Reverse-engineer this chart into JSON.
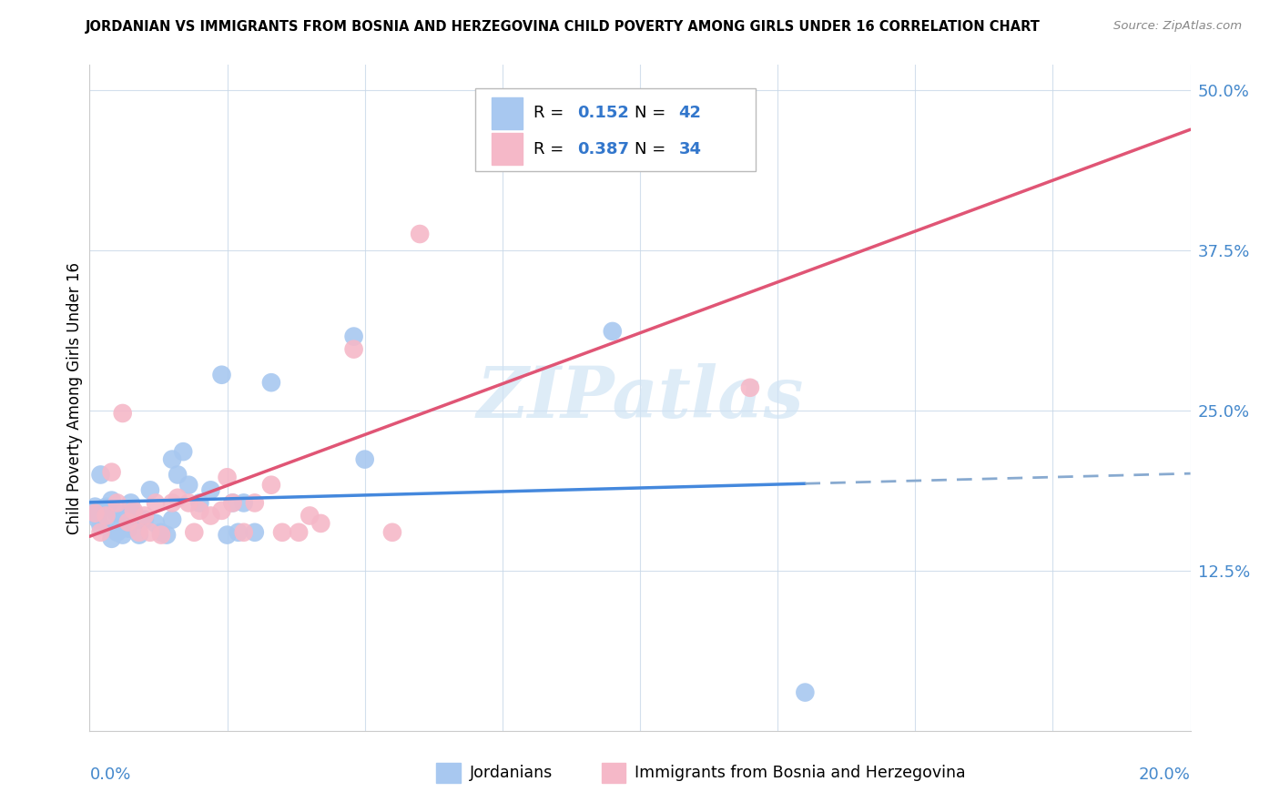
{
  "title": "JORDANIAN VS IMMIGRANTS FROM BOSNIA AND HERZEGOVINA CHILD POVERTY AMONG GIRLS UNDER 16 CORRELATION CHART",
  "source": "Source: ZipAtlas.com",
  "ylabel": "Child Poverty Among Girls Under 16",
  "xlim": [
    0.0,
    0.2
  ],
  "ylim": [
    0.0,
    0.52
  ],
  "ytick_vals": [
    0.0,
    0.125,
    0.25,
    0.375,
    0.5
  ],
  "ytick_labels": [
    "",
    "12.5%",
    "25.0%",
    "37.5%",
    "50.0%"
  ],
  "xtick_vals": [
    0.0,
    0.025,
    0.05,
    0.075,
    0.1,
    0.125,
    0.15,
    0.175,
    0.2
  ],
  "jordanians_color": "#a8c8f0",
  "bosnia_color": "#f5b8c8",
  "line_jordan_color": "#4488dd",
  "line_bosnia_color": "#e05575",
  "line_jordan_dash_color": "#88aad0",
  "watermark": "ZIPatlas",
  "watermark_color": "#d0e4f5",
  "legend_R1": "0.152",
  "legend_N1": "42",
  "legend_R2": "0.387",
  "legend_N2": "34",
  "label_jordan": "Jordanians",
  "label_bosnia": "Immigrants from Bosnia and Herzegovina",
  "jordan_x": [
    0.0005,
    0.001,
    0.0015,
    0.002,
    0.002,
    0.003,
    0.003,
    0.004,
    0.004,
    0.005,
    0.005,
    0.006,
    0.006,
    0.007,
    0.007,
    0.0075,
    0.008,
    0.009,
    0.009,
    0.01,
    0.011,
    0.012,
    0.013,
    0.014,
    0.015,
    0.015,
    0.016,
    0.017,
    0.018,
    0.02,
    0.022,
    0.024,
    0.025,
    0.026,
    0.027,
    0.028,
    0.03,
    0.033,
    0.048,
    0.05,
    0.095,
    0.13
  ],
  "jordan_y": [
    0.17,
    0.175,
    0.165,
    0.16,
    0.2,
    0.165,
    0.175,
    0.15,
    0.18,
    0.155,
    0.17,
    0.153,
    0.165,
    0.158,
    0.168,
    0.178,
    0.17,
    0.165,
    0.153,
    0.165,
    0.188,
    0.162,
    0.155,
    0.153,
    0.165,
    0.212,
    0.2,
    0.218,
    0.192,
    0.178,
    0.188,
    0.278,
    0.153,
    0.178,
    0.155,
    0.178,
    0.155,
    0.272,
    0.308,
    0.212,
    0.312,
    0.03
  ],
  "bosnia_x": [
    0.001,
    0.002,
    0.003,
    0.004,
    0.005,
    0.006,
    0.007,
    0.008,
    0.009,
    0.01,
    0.011,
    0.012,
    0.013,
    0.015,
    0.016,
    0.018,
    0.019,
    0.02,
    0.022,
    0.024,
    0.025,
    0.026,
    0.028,
    0.03,
    0.033,
    0.035,
    0.038,
    0.04,
    0.042,
    0.048,
    0.055,
    0.06,
    0.08,
    0.12
  ],
  "bosnia_y": [
    0.17,
    0.155,
    0.168,
    0.202,
    0.178,
    0.248,
    0.163,
    0.172,
    0.155,
    0.168,
    0.155,
    0.178,
    0.153,
    0.178,
    0.182,
    0.178,
    0.155,
    0.172,
    0.168,
    0.172,
    0.198,
    0.178,
    0.155,
    0.178,
    0.192,
    0.155,
    0.155,
    0.168,
    0.162,
    0.298,
    0.155,
    0.388,
    0.448,
    0.268
  ]
}
